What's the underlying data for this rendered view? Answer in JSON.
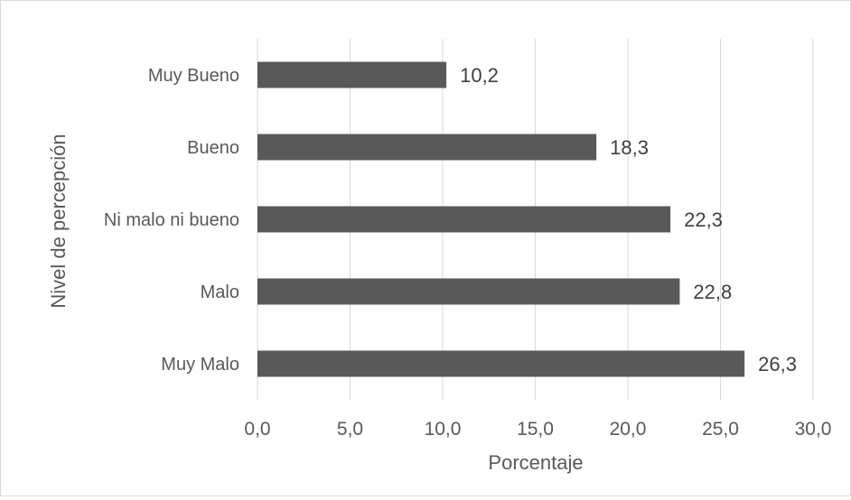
{
  "chart_data": {
    "type": "bar",
    "orientation": "horizontal",
    "categories": [
      "Muy Bueno",
      "Bueno",
      "Ni malo ni bueno",
      "Malo",
      "Muy Malo"
    ],
    "values": [
      10.2,
      18.3,
      22.3,
      22.8,
      26.3
    ],
    "value_labels": [
      "10,2",
      "18,3",
      "22,3",
      "22,8",
      "26,3"
    ],
    "xlabel": "Porcentaje",
    "ylabel": "Nivel de percepción",
    "xlim": [
      0,
      30
    ],
    "x_ticks": [
      0,
      5,
      10,
      15,
      20,
      25,
      30
    ],
    "x_tick_labels": [
      "0,0",
      "5,0",
      "10,0",
      "15,0",
      "20,0",
      "25,0",
      "30,0"
    ],
    "grid": "vertical",
    "legend": "none",
    "colors": {
      "bar": "#595959",
      "grid": "#d9d9d9",
      "text": "#595959",
      "value_text": "#404040",
      "border": "#d9d9d9"
    }
  }
}
